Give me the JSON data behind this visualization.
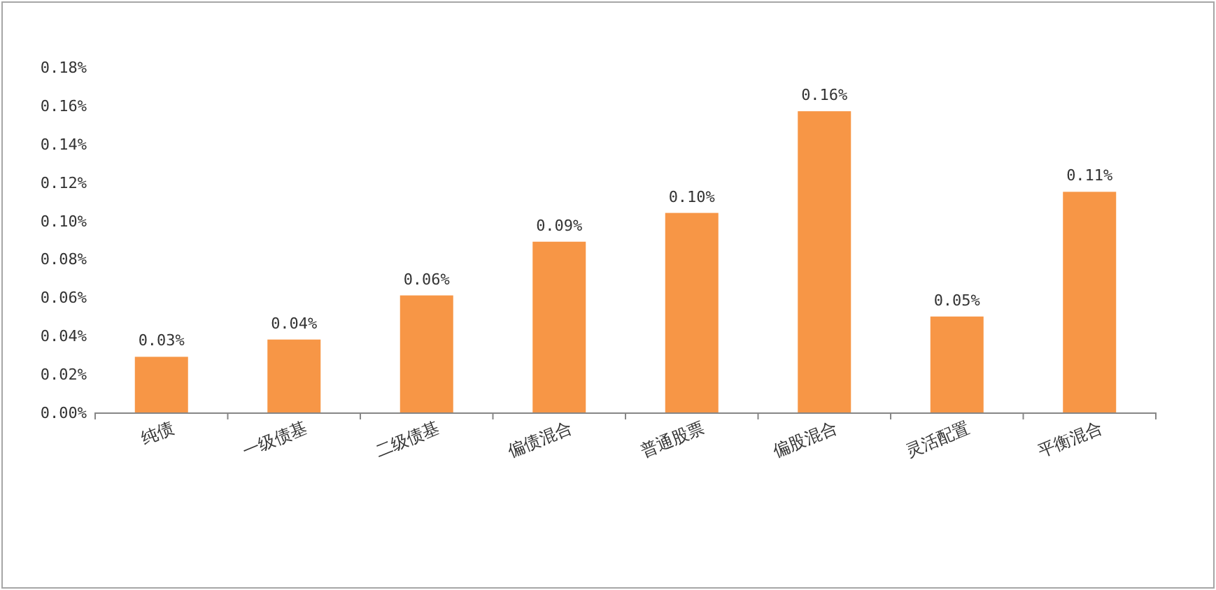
{
  "chart_data": {
    "type": "bar",
    "categories": [
      "纯债",
      "一级债基",
      "二级债基",
      "偏债混合",
      "普通股票",
      "偏股混合",
      "灵活配置",
      "平衡混合"
    ],
    "values": [
      0.029,
      0.038,
      0.061,
      0.089,
      0.104,
      0.157,
      0.05,
      0.115
    ],
    "value_labels": [
      "0.03%",
      "0.04%",
      "0.06%",
      "0.09%",
      "0.10%",
      "0.16%",
      "0.05%",
      "0.11%"
    ],
    "color": "#f79646",
    "ylim": [
      0,
      0.18
    ],
    "yticks": [
      {
        "value": 0,
        "label": "0.00%"
      },
      {
        "value": 0.02,
        "label": "0.02%"
      },
      {
        "value": 0.04,
        "label": "0.04%"
      },
      {
        "value": 0.06,
        "label": "0.06%"
      },
      {
        "value": 0.08,
        "label": "0.08%"
      },
      {
        "value": 0.1,
        "label": "0.10%"
      },
      {
        "value": 0.12,
        "label": "0.12%"
      },
      {
        "value": 0.14,
        "label": "0.14%"
      },
      {
        "value": 0.16,
        "label": "0.16%"
      },
      {
        "value": 0.18,
        "label": "0.18%"
      }
    ],
    "grid": false
  }
}
